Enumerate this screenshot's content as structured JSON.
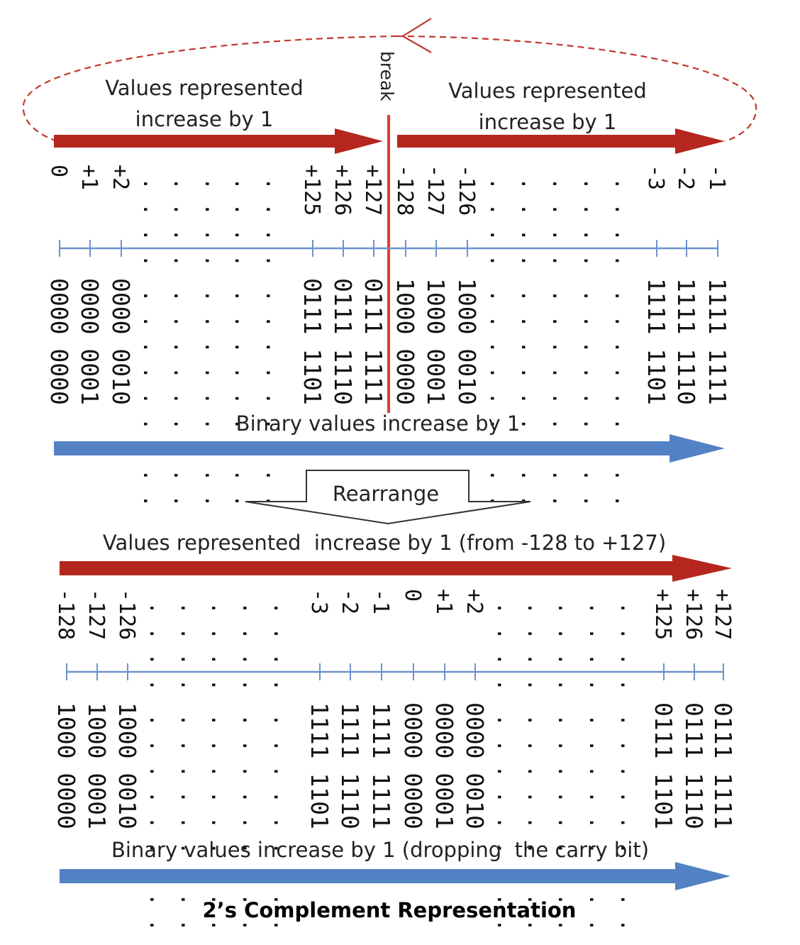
{
  "colors": {
    "red_arrow": "#b5261e",
    "blue_arrow": "#5382c4",
    "axis_line": "#6d93cd",
    "break_line": "#e23a36",
    "dashed_loop": "#c0392b",
    "rearrange_stroke": "#333333"
  },
  "top": {
    "caption_left_line1": "Values represented",
    "caption_left_line2": "increase by 1",
    "caption_right_line1": "Values represented",
    "caption_right_line2": "increase by 1",
    "break_label": "break",
    "binary_caption": "Binary values increase by 1",
    "ticks": [
      {
        "value": "0",
        "binary": "0000 0000"
      },
      {
        "value": "+1",
        "binary": "0000 0001"
      },
      {
        "value": "+2",
        "binary": "0000 0010"
      },
      {
        "value": "+125",
        "binary": "0111 1101"
      },
      {
        "value": "+126",
        "binary": "0111 1110"
      },
      {
        "value": "+127",
        "binary": "0111 1111"
      },
      {
        "value": "-128",
        "binary": "1000 0000"
      },
      {
        "value": "-127",
        "binary": "1000 0001"
      },
      {
        "value": "-126",
        "binary": "1000 0010"
      },
      {
        "value": "-3",
        "binary": "1111 1101"
      },
      {
        "value": "-2",
        "binary": "1111 1110"
      },
      {
        "value": "-1",
        "binary": "1111 1111"
      }
    ]
  },
  "rearrange_label": "Rearrange",
  "bottom": {
    "values_caption": "Values represented  increase by 1 (from -128 to +127)",
    "binary_caption": "Binary values increase by 1 (dropping  the carry bit)",
    "ticks": [
      {
        "value": "-128",
        "binary": "1000 0000"
      },
      {
        "value": "-127",
        "binary": "1000 0001"
      },
      {
        "value": "-126",
        "binary": "1000 0010"
      },
      {
        "value": "-3",
        "binary": "1111 1101"
      },
      {
        "value": "-2",
        "binary": "1111 1110"
      },
      {
        "value": "-1",
        "binary": "1111 1111"
      },
      {
        "value": "0",
        "binary": "0000 0000"
      },
      {
        "value": "+1",
        "binary": "0000 0001"
      },
      {
        "value": "+2",
        "binary": "0000 0010"
      },
      {
        "value": "+125",
        "binary": "0111 1101"
      },
      {
        "value": "+126",
        "binary": "0111 1110"
      },
      {
        "value": "+127",
        "binary": "0111 1111"
      }
    ]
  },
  "title": "2’s Complement Representation"
}
